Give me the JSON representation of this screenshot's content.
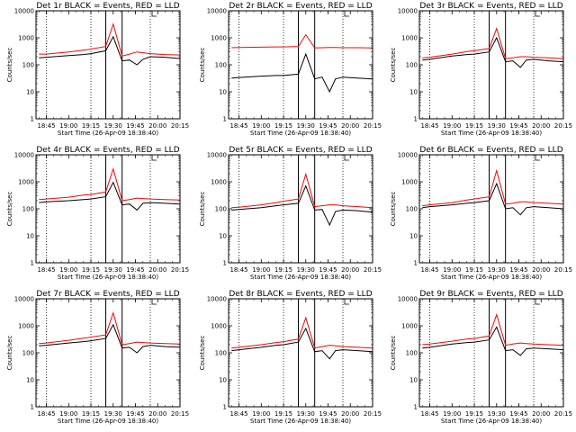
{
  "figure": {
    "xlabel": "Start Time (26-Apr-09 18:38:40)",
    "ylabel": "Counts/sec",
    "x_ticks": [
      "18:45",
      "19:00",
      "19:15",
      "19:30",
      "19:45",
      "20:00",
      "20:15"
    ],
    "y_ticks": [
      "1",
      "10",
      "100",
      "1000",
      "10000"
    ],
    "colors": {
      "events": "#000000",
      "lld": "#ff0000",
      "axes": "#000000",
      "background": "#ffffff"
    }
  },
  "chart_data": [
    {
      "type": "line",
      "title": "Det 1r BLACK = Events, RED = LLD",
      "x": [
        "18:40",
        "18:45",
        "19:00",
        "19:10",
        "19:15",
        "19:25",
        "19:30",
        "19:36",
        "19:41",
        "19:46",
        "19:50",
        "19:55",
        "20:05",
        "20:15"
      ],
      "series": [
        {
          "name": "BLACK = Events",
          "color": "#000000",
          "values": [
            180,
            190,
            220,
            240,
            260,
            330,
            1100,
            140,
            150,
            100,
            160,
            200,
            190,
            170
          ]
        },
        {
          "name": "RED = LLD",
          "color": "#ff0000",
          "values": [
            250,
            250,
            300,
            350,
            380,
            480,
            3200,
            210,
            250,
            300,
            280,
            260,
            240,
            230
          ]
        }
      ],
      "ylim": [
        1,
        10000
      ],
      "yscale": "log",
      "xlim": [
        "18:38",
        "20:15"
      ],
      "vlines_solid": [
        "19:25",
        "19:36"
      ],
      "vlines_dotted": [
        "18:45",
        "19:15",
        "19:55"
      ]
    },
    {
      "type": "line",
      "title": "Det 2r BLACK = Events, RED = LLD",
      "x": [
        "18:40",
        "18:45",
        "19:00",
        "19:10",
        "19:15",
        "19:25",
        "19:30",
        "19:36",
        "19:41",
        "19:46",
        "19:50",
        "19:55",
        "20:05",
        "20:15"
      ],
      "series": [
        {
          "name": "BLACK = Events",
          "color": "#000000",
          "values": [
            32,
            34,
            38,
            40,
            40,
            45,
            250,
            30,
            35,
            10,
            30,
            35,
            32,
            30
          ]
        },
        {
          "name": "RED = LLD",
          "color": "#ff0000",
          "values": [
            430,
            440,
            450,
            460,
            460,
            480,
            1300,
            420,
            430,
            440,
            440,
            430,
            430,
            420
          ]
        }
      ],
      "ylim": [
        1,
        10000
      ],
      "yscale": "log",
      "xlim": [
        "18:38",
        "20:15"
      ],
      "vlines_solid": [
        "19:25",
        "19:36"
      ],
      "vlines_dotted": [
        "18:45",
        "19:15",
        "19:55"
      ]
    },
    {
      "type": "line",
      "title": "Det 3r BLACK = Events, RED = LLD",
      "x": [
        "18:40",
        "18:45",
        "19:00",
        "19:10",
        "19:15",
        "19:25",
        "19:30",
        "19:36",
        "19:41",
        "19:46",
        "19:50",
        "19:55",
        "20:05",
        "20:15"
      ],
      "series": [
        {
          "name": "BLACK = Events",
          "color": "#000000",
          "values": [
            150,
            160,
            210,
            240,
            250,
            300,
            1000,
            130,
            140,
            80,
            150,
            160,
            140,
            130
          ]
        },
        {
          "name": "RED = LLD",
          "color": "#ff0000",
          "values": [
            180,
            190,
            250,
            310,
            330,
            400,
            2200,
            170,
            180,
            200,
            200,
            190,
            180,
            170
          ]
        }
      ],
      "ylim": [
        1,
        10000
      ],
      "yscale": "log",
      "xlim": [
        "18:38",
        "20:15"
      ],
      "vlines_solid": [
        "19:25",
        "19:36"
      ],
      "vlines_dotted": [
        "18:45",
        "19:15",
        "19:55"
      ]
    },
    {
      "type": "line",
      "title": "Det 4r BLACK = Events, RED = LLD",
      "x": [
        "18:40",
        "18:45",
        "19:00",
        "19:10",
        "19:15",
        "19:25",
        "19:30",
        "19:36",
        "19:41",
        "19:46",
        "19:50",
        "19:55",
        "20:05",
        "20:15"
      ],
      "series": [
        {
          "name": "BLACK = Events",
          "color": "#000000",
          "values": [
            170,
            180,
            200,
            220,
            230,
            280,
            950,
            140,
            150,
            90,
            160,
            170,
            160,
            150
          ]
        },
        {
          "name": "RED = LLD",
          "color": "#ff0000",
          "values": [
            220,
            230,
            270,
            320,
            340,
            420,
            3000,
            200,
            220,
            250,
            240,
            230,
            220,
            210
          ]
        }
      ],
      "ylim": [
        1,
        10000
      ],
      "yscale": "log",
      "xlim": [
        "18:38",
        "20:15"
      ],
      "vlines_solid": [
        "19:25",
        "19:36"
      ],
      "vlines_dotted": [
        "18:45",
        "19:15",
        "19:55"
      ]
    },
    {
      "type": "line",
      "title": "Det 5r BLACK = Events, RED = LLD",
      "x": [
        "18:40",
        "18:45",
        "19:00",
        "19:10",
        "19:15",
        "19:25",
        "19:30",
        "19:36",
        "19:41",
        "19:46",
        "19:50",
        "19:55",
        "20:05",
        "20:15"
      ],
      "series": [
        {
          "name": "BLACK = Events",
          "color": "#000000",
          "values": [
            90,
            95,
            110,
            130,
            140,
            160,
            700,
            90,
            95,
            25,
            80,
            90,
            85,
            75
          ]
        },
        {
          "name": "RED = LLD",
          "color": "#ff0000",
          "values": [
            110,
            115,
            140,
            170,
            190,
            230,
            1900,
            120,
            130,
            140,
            140,
            130,
            120,
            110
          ]
        }
      ],
      "ylim": [
        1,
        10000
      ],
      "yscale": "log",
      "xlim": [
        "18:38",
        "20:15"
      ],
      "vlines_solid": [
        "19:25",
        "19:36"
      ],
      "vlines_dotted": [
        "18:45",
        "19:15",
        "19:55"
      ]
    },
    {
      "type": "line",
      "title": "Det 6r BLACK = Events, RED = LLD",
      "x": [
        "18:40",
        "18:45",
        "19:00",
        "19:10",
        "19:15",
        "19:25",
        "19:30",
        "19:36",
        "19:41",
        "19:46",
        "19:50",
        "19:55",
        "20:05",
        "20:15"
      ],
      "series": [
        {
          "name": "BLACK = Events",
          "color": "#000000",
          "values": [
            110,
            120,
            140,
            160,
            170,
            200,
            850,
            100,
            110,
            60,
            110,
            120,
            110,
            100
          ]
        },
        {
          "name": "RED = LLD",
          "color": "#ff0000",
          "values": [
            130,
            140,
            170,
            210,
            230,
            280,
            2600,
            150,
            160,
            180,
            180,
            170,
            160,
            150
          ]
        }
      ],
      "ylim": [
        1,
        10000
      ],
      "yscale": "log",
      "xlim": [
        "18:38",
        "20:15"
      ],
      "vlines_solid": [
        "19:25",
        "19:36"
      ],
      "vlines_dotted": [
        "18:45",
        "19:15",
        "19:55"
      ]
    },
    {
      "type": "line",
      "title": "Det 7r BLACK = Events, RED = LLD",
      "x": [
        "18:40",
        "18:45",
        "19:00",
        "19:10",
        "19:15",
        "19:25",
        "19:30",
        "19:36",
        "19:41",
        "19:46",
        "19:50",
        "19:55",
        "20:05",
        "20:15"
      ],
      "series": [
        {
          "name": "BLACK = Events",
          "color": "#000000",
          "values": [
            180,
            190,
            230,
            260,
            280,
            340,
            1100,
            150,
            160,
            100,
            170,
            190,
            170,
            160
          ]
        },
        {
          "name": "RED = LLD",
          "color": "#ff0000",
          "values": [
            220,
            230,
            290,
            350,
            380,
            460,
            3000,
            200,
            220,
            250,
            240,
            230,
            220,
            210
          ]
        }
      ],
      "ylim": [
        1,
        10000
      ],
      "yscale": "log",
      "xlim": [
        "18:38",
        "20:15"
      ],
      "vlines_solid": [
        "19:25",
        "19:36"
      ],
      "vlines_dotted": [
        "18:45",
        "19:15",
        "19:55"
      ]
    },
    {
      "type": "line",
      "title": "Det 8r BLACK = Events, RED = LLD",
      "x": [
        "18:40",
        "18:45",
        "19:00",
        "19:10",
        "19:15",
        "19:25",
        "19:30",
        "19:36",
        "19:41",
        "19:46",
        "19:50",
        "19:55",
        "20:05",
        "20:15"
      ],
      "series": [
        {
          "name": "BLACK = Events",
          "color": "#000000",
          "values": [
            120,
            130,
            160,
            190,
            200,
            250,
            800,
            110,
            120,
            60,
            120,
            130,
            120,
            110
          ]
        },
        {
          "name": "RED = LLD",
          "color": "#ff0000",
          "values": [
            150,
            160,
            200,
            240,
            260,
            320,
            2000,
            150,
            170,
            190,
            180,
            170,
            160,
            150
          ]
        }
      ],
      "ylim": [
        1,
        10000
      ],
      "yscale": "log",
      "xlim": [
        "18:38",
        "20:15"
      ],
      "vlines_solid": [
        "19:25",
        "19:36"
      ],
      "vlines_dotted": [
        "18:45",
        "19:15",
        "19:55"
      ]
    },
    {
      "type": "line",
      "title": "Det 9r BLACK = Events, RED = LLD",
      "x": [
        "18:40",
        "18:45",
        "19:00",
        "19:10",
        "19:15",
        "19:25",
        "19:30",
        "19:36",
        "19:41",
        "19:46",
        "19:50",
        "19:55",
        "20:05",
        "20:15"
      ],
      "series": [
        {
          "name": "BLACK = Events",
          "color": "#000000",
          "values": [
            150,
            160,
            210,
            240,
            250,
            300,
            900,
            120,
            130,
            80,
            140,
            150,
            140,
            130
          ]
        },
        {
          "name": "RED = LLD",
          "color": "#ff0000",
          "values": [
            200,
            210,
            270,
            320,
            340,
            420,
            2600,
            190,
            210,
            230,
            220,
            210,
            200,
            190
          ]
        }
      ],
      "ylim": [
        1,
        10000
      ],
      "yscale": "log",
      "xlim": [
        "18:38",
        "20:15"
      ],
      "vlines_solid": [
        "19:25",
        "19:36"
      ],
      "vlines_dotted": [
        "18:45",
        "19:15",
        "19:55"
      ]
    }
  ]
}
